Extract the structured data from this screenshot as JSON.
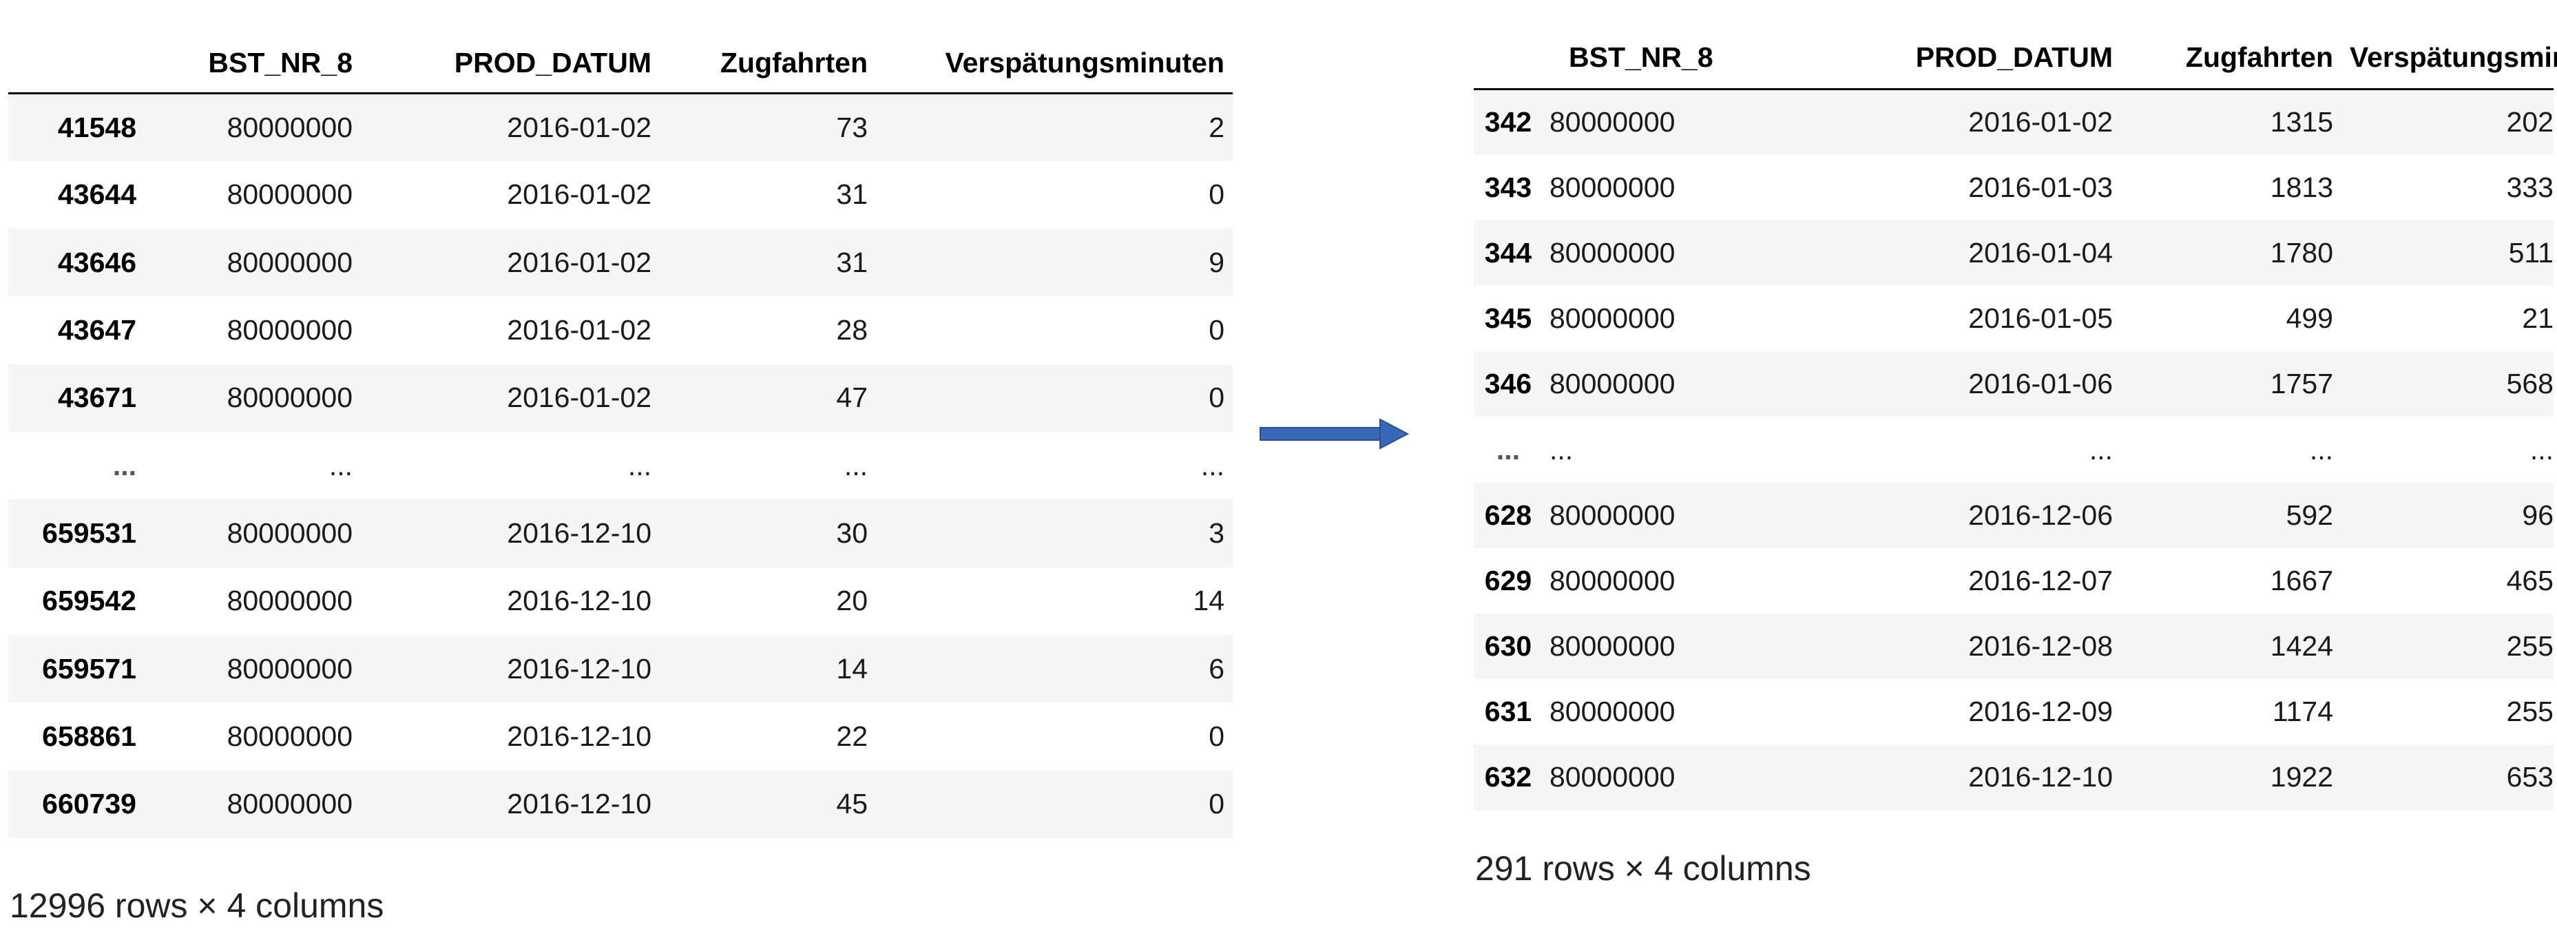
{
  "left": {
    "columns": [
      "BST_NR_8",
      "PROD_DATUM",
      "Zugfahrten",
      "Verspätungsminuten"
    ],
    "rows": [
      {
        "idx": "41548",
        "bst": "80000000",
        "date": "2016-01-02",
        "zug": "73",
        "vers": "2"
      },
      {
        "idx": "43644",
        "bst": "80000000",
        "date": "2016-01-02",
        "zug": "31",
        "vers": "0"
      },
      {
        "idx": "43646",
        "bst": "80000000",
        "date": "2016-01-02",
        "zug": "31",
        "vers": "9"
      },
      {
        "idx": "43647",
        "bst": "80000000",
        "date": "2016-01-02",
        "zug": "28",
        "vers": "0"
      },
      {
        "idx": "43671",
        "bst": "80000000",
        "date": "2016-01-02",
        "zug": "47",
        "vers": "0"
      },
      {
        "idx": "...",
        "bst": "...",
        "date": "...",
        "zug": "...",
        "vers": "..."
      },
      {
        "idx": "659531",
        "bst": "80000000",
        "date": "2016-12-10",
        "zug": "30",
        "vers": "3"
      },
      {
        "idx": "659542",
        "bst": "80000000",
        "date": "2016-12-10",
        "zug": "20",
        "vers": "14"
      },
      {
        "idx": "659571",
        "bst": "80000000",
        "date": "2016-12-10",
        "zug": "14",
        "vers": "6"
      },
      {
        "idx": "658861",
        "bst": "80000000",
        "date": "2016-12-10",
        "zug": "22",
        "vers": "0"
      },
      {
        "idx": "660739",
        "bst": "80000000",
        "date": "2016-12-10",
        "zug": "45",
        "vers": "0"
      }
    ],
    "summary": "12996 rows × 4 columns"
  },
  "right": {
    "columns": [
      "BST_NR_8",
      "PROD_DATUM",
      "Zugfahrten",
      "Verspätungsminuten"
    ],
    "rows": [
      {
        "idx": "342",
        "bst": "80000000",
        "date": "2016-01-02",
        "zug": "1315",
        "vers": "202"
      },
      {
        "idx": "343",
        "bst": "80000000",
        "date": "2016-01-03",
        "zug": "1813",
        "vers": "333"
      },
      {
        "idx": "344",
        "bst": "80000000",
        "date": "2016-01-04",
        "zug": "1780",
        "vers": "511"
      },
      {
        "idx": "345",
        "bst": "80000000",
        "date": "2016-01-05",
        "zug": "499",
        "vers": "21"
      },
      {
        "idx": "346",
        "bst": "80000000",
        "date": "2016-01-06",
        "zug": "1757",
        "vers": "568"
      },
      {
        "idx": "...",
        "bst": "...",
        "date": "...",
        "zug": "...",
        "vers": "..."
      },
      {
        "idx": "628",
        "bst": "80000000",
        "date": "2016-12-06",
        "zug": "592",
        "vers": "96"
      },
      {
        "idx": "629",
        "bst": "80000000",
        "date": "2016-12-07",
        "zug": "1667",
        "vers": "465"
      },
      {
        "idx": "630",
        "bst": "80000000",
        "date": "2016-12-08",
        "zug": "1424",
        "vers": "255"
      },
      {
        "idx": "631",
        "bst": "80000000",
        "date": "2016-12-09",
        "zug": "1174",
        "vers": "255"
      },
      {
        "idx": "632",
        "bst": "80000000",
        "date": "2016-12-10",
        "zug": "1922",
        "vers": "653"
      }
    ],
    "summary": "291 rows × 4 columns"
  },
  "arrow": {
    "icon": "arrow-right-icon",
    "color": "#3A68B8"
  }
}
